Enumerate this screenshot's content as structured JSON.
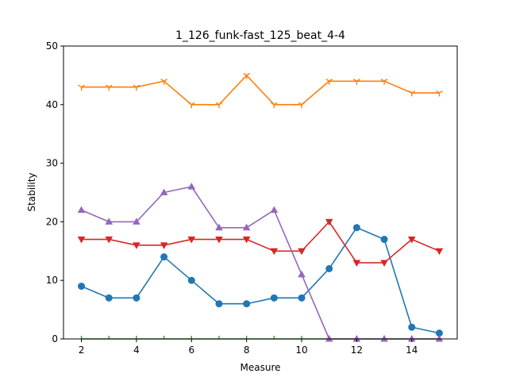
{
  "chart_data": {
    "type": "line",
    "title": "1_126_funk-fast_125_beat_4-4",
    "xlabel": "Measure",
    "ylabel": "Stability",
    "xlim": [
      1.35,
      15.65
    ],
    "ylim": [
      0,
      50
    ],
    "xticks": [
      2,
      4,
      6,
      8,
      10,
      12,
      14
    ],
    "yticks": [
      0,
      10,
      20,
      30,
      40,
      50
    ],
    "grid": false,
    "legend": "none",
    "x": [
      2,
      3,
      4,
      5,
      6,
      7,
      8,
      9,
      10,
      11,
      12,
      13,
      14,
      15
    ],
    "series": [
      {
        "color": "#1f77b4",
        "marker": "circle",
        "values": [
          9,
          7,
          7,
          14,
          10,
          6,
          6,
          7,
          7,
          12,
          19,
          17,
          2,
          1
        ]
      },
      {
        "color": "#ff7f0e",
        "marker": "tri-down",
        "values": [
          43,
          43,
          43,
          44,
          40,
          40,
          45,
          40,
          40,
          44,
          44,
          44,
          42,
          42
        ]
      },
      {
        "color": "#2ca02c",
        "marker": "tick",
        "values": [
          0,
          0,
          0,
          0,
          0,
          0,
          0,
          0,
          0,
          0,
          0,
          0,
          0,
          0
        ]
      },
      {
        "color": "#d62728",
        "marker": "triangle-down",
        "values": [
          17,
          17,
          16,
          16,
          17,
          17,
          17,
          15,
          15,
          20,
          13,
          13,
          17,
          15
        ]
      },
      {
        "color": "#9467bd",
        "marker": "triangle-up",
        "values": [
          22,
          20,
          20,
          25,
          26,
          19,
          19,
          22,
          11,
          0,
          0,
          0,
          0,
          0
        ]
      }
    ]
  }
}
